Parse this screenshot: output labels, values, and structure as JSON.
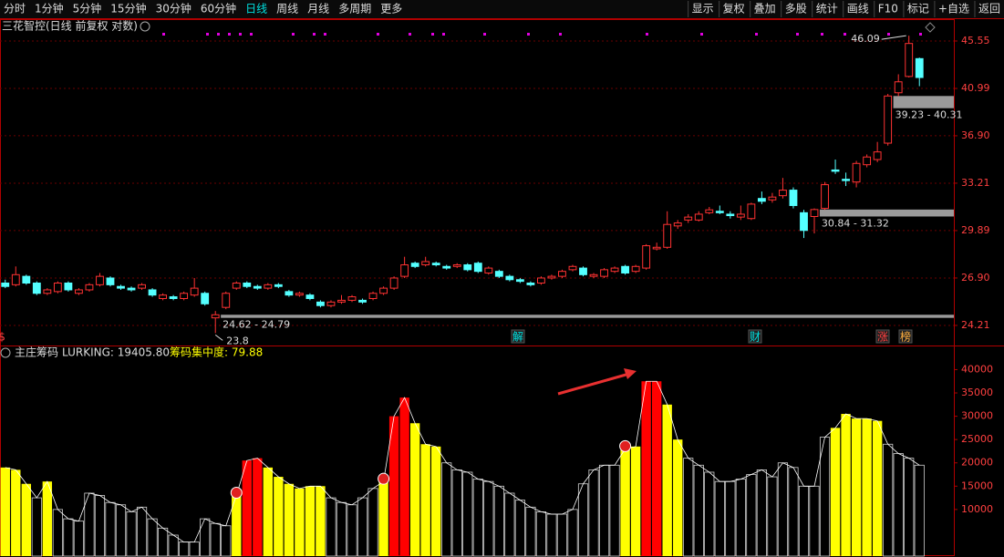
{
  "toolbar": {
    "left": [
      "分时",
      "1分钟",
      "5分钟",
      "15分钟",
      "30分钟",
      "60分钟",
      "日线",
      "周线",
      "月线",
      "多周期",
      "更多"
    ],
    "active": 6,
    "right": [
      "显示",
      "复权",
      "叠加",
      "多股",
      "统计",
      "画线",
      "F10",
      "标记",
      "+自选",
      "返回"
    ]
  },
  "chart_data": [
    {
      "type": "candlestick",
      "title": "三花智控(日线 前复权 对数)",
      "log_scale": true,
      "grid": true,
      "up_color": "#ff3232",
      "down_color": "#54ffff",
      "open": [
        26.6,
        26.5,
        27.0,
        26.6,
        26.0,
        26.1,
        26.6,
        26.0,
        26.2,
        26.5,
        26.9,
        26.4,
        26.3,
        26.3,
        26.2,
        25.7,
        25.8,
        25.7,
        25.9,
        26.0,
        24.62,
        25.2,
        26.3,
        26.6,
        26.4,
        26.3,
        26.5,
        26.1,
        25.9,
        25.9,
        25.5,
        25.3,
        25.5,
        25.6,
        25.6,
        25.7,
        26.0,
        26.3,
        27.0,
        27.8,
        27.7,
        27.8,
        27.6,
        27.6,
        27.7,
        27.8,
        27.2,
        27.3,
        27.0,
        26.8,
        26.6,
        26.6,
        26.9,
        27.0,
        27.4,
        27.5,
        27.0,
        27.0,
        27.3,
        27.6,
        27.3,
        27.5,
        28.7,
        28.8,
        30.2,
        30.6,
        30.6,
        31.1,
        31.2,
        31.0,
        30.8,
        30.7,
        32.1,
        32.0,
        32.3,
        32.7,
        31.1,
        30.84,
        31.4,
        34.2,
        33.5,
        33.3,
        34.6,
        35.0,
        36.3,
        40.6,
        42.1,
        43.8
      ],
      "high": [
        26.8,
        27.6,
        27.1,
        26.7,
        26.3,
        26.7,
        26.7,
        26.3,
        26.6,
        27.2,
        27.0,
        26.5,
        26.4,
        26.6,
        26.3,
        26.0,
        25.9,
        26.1,
        26.9,
        26.1,
        25.0,
        26.1,
        26.7,
        26.7,
        26.5,
        26.6,
        26.6,
        26.2,
        26.1,
        26.0,
        25.6,
        25.6,
        25.9,
        25.9,
        25.7,
        26.1,
        26.4,
        27.0,
        28.2,
        27.9,
        28.2,
        27.9,
        27.7,
        27.8,
        27.8,
        27.9,
        27.6,
        27.4,
        27.1,
        26.9,
        26.7,
        27.0,
        27.1,
        27.4,
        27.7,
        27.6,
        27.2,
        27.5,
        27.6,
        27.7,
        27.7,
        29.0,
        29.1,
        31.2,
        30.6,
        31.0,
        31.2,
        31.5,
        31.6,
        31.2,
        31.6,
        31.8,
        32.6,
        32.5,
        33.6,
        32.9,
        31.3,
        31.4,
        33.3,
        35.0,
        34.0,
        34.9,
        35.4,
        36.4,
        40.5,
        42.3,
        46.09,
        43.9
      ],
      "low": [
        26.3,
        26.4,
        26.5,
        25.9,
        25.9,
        26.0,
        26.1,
        25.9,
        26.1,
        26.4,
        26.4,
        26.2,
        26.1,
        26.2,
        25.8,
        25.6,
        25.6,
        25.6,
        25.8,
        25.3,
        23.8,
        25.1,
        26.2,
        26.3,
        26.2,
        26.2,
        26.3,
        25.8,
        25.8,
        25.6,
        25.2,
        25.2,
        25.4,
        25.5,
        25.4,
        25.6,
        25.9,
        26.2,
        26.9,
        27.5,
        27.6,
        27.6,
        27.4,
        27.5,
        27.3,
        27.2,
        27.1,
        26.9,
        26.7,
        26.6,
        26.4,
        26.5,
        26.8,
        26.9,
        27.3,
        27.0,
        26.9,
        26.9,
        27.2,
        27.1,
        27.2,
        27.4,
        28.6,
        28.7,
        30.0,
        30.4,
        30.5,
        31.0,
        31.0,
        30.7,
        30.6,
        30.6,
        31.7,
        31.8,
        32.1,
        31.4,
        29.4,
        29.7,
        31.3,
        33.9,
        33.0,
        32.9,
        34.4,
        34.8,
        36.1,
        40.3,
        42.0,
        41.2
      ],
      "close": [
        26.4,
        27.1,
        26.6,
        26.0,
        26.2,
        26.6,
        26.2,
        26.2,
        26.5,
        27.0,
        26.5,
        26.3,
        26.2,
        26.5,
        25.9,
        25.9,
        25.7,
        26.0,
        26.3,
        25.4,
        24.79,
        26.0,
        26.6,
        26.4,
        26.3,
        26.5,
        26.4,
        25.9,
        26.0,
        25.7,
        25.3,
        25.5,
        25.6,
        25.8,
        25.5,
        26.0,
        26.3,
        26.9,
        27.7,
        27.6,
        27.9,
        27.7,
        27.5,
        27.7,
        27.4,
        27.3,
        27.5,
        27.0,
        26.8,
        26.7,
        26.5,
        26.9,
        27.0,
        27.3,
        27.6,
        27.1,
        27.1,
        27.4,
        27.5,
        27.2,
        27.6,
        28.9,
        28.8,
        30.3,
        30.4,
        30.8,
        31.0,
        31.3,
        31.1,
        30.9,
        31.0,
        31.7,
        31.9,
        32.2,
        32.7,
        31.6,
        29.9,
        31.32,
        33.1,
        34.1,
        33.4,
        34.7,
        35.2,
        35.6,
        40.31,
        41.6,
        45.3,
        42.0
      ],
      "zones": [
        {
          "label": "39.23 - 40.31",
          "low": 39.23,
          "high": 40.31
        },
        {
          "label": "30.84 - 31.32",
          "low": 30.84,
          "high": 31.32
        },
        {
          "label": "24.62 - 24.79",
          "low": 24.62,
          "high": 24.79
        }
      ],
      "events": [
        "$",
        "解",
        "财",
        "涨",
        "榜"
      ],
      "ylim": [
        23.2,
        47.72
      ],
      "yticks": [
        45.55,
        40.99,
        {
          "value": 36.9,
          "label": "36.90"
        },
        33.21,
        29.89,
        {
          "value": 26.9,
          "label": "26.90"
        },
        24.21
      ]
    },
    {
      "type": "bar",
      "title": "主庄筹码",
      "readouts": [
        "LURKING: 19405.80",
        "筹码集中度: 79.88"
      ],
      "line_color": "#ffffff",
      "values": [
        19000,
        18500,
        15500,
        12500,
        16000,
        10000,
        8000,
        7500,
        13500,
        13000,
        11500,
        11000,
        9500,
        10500,
        8000,
        6000,
        4500,
        3000,
        3000,
        8000,
        7000,
        6500,
        13000,
        20500,
        21000,
        19000,
        17000,
        15500,
        14500,
        15000,
        15000,
        12500,
        11500,
        11000,
        12500,
        14500,
        16000,
        30000,
        34000,
        28500,
        24000,
        23500,
        20000,
        18500,
        18000,
        16500,
        16000,
        15000,
        13500,
        12000,
        10500,
        9500,
        9000,
        9000,
        10000,
        15500,
        18500,
        19500,
        19500,
        23000,
        23500,
        37500,
        37500,
        32500,
        25000,
        21000,
        19500,
        18000,
        16000,
        16000,
        16500,
        17500,
        18500,
        17000,
        20000,
        19000,
        15000,
        15000,
        25500,
        27500,
        30500,
        29500,
        29500,
        29000,
        24000,
        22000,
        21000,
        19500
      ],
      "colors": [
        "#ffff00",
        "#ffff00",
        "#ffff00",
        "#000000",
        "#ffff00",
        "#000000",
        "#000000",
        "#000000",
        "#000000",
        "#000000",
        "#000000",
        "#000000",
        "#000000",
        "#000000",
        "#000000",
        "#000000",
        "#000000",
        "#000000",
        "#000000",
        "#000000",
        "#000000",
        "#000000",
        "#ffff00",
        "#ff0000",
        "#ff0000",
        "#ffff00",
        "#ffff00",
        "#ffff00",
        "#ffff00",
        "#ffff00",
        "#ffff00",
        "#000000",
        "#000000",
        "#000000",
        "#000000",
        "#000000",
        "#ffff00",
        "#ff0000",
        "#ff0000",
        "#ffff00",
        "#ffff00",
        "#ffff00",
        "#000000",
        "#000000",
        "#000000",
        "#000000",
        "#000000",
        "#000000",
        "#000000",
        "#000000",
        "#000000",
        "#000000",
        "#000000",
        "#000000",
        "#000000",
        "#000000",
        "#000000",
        "#000000",
        "#000000",
        "#ffff00",
        "#ffff00",
        "#ff0000",
        "#ff0000",
        "#ffff00",
        "#ffff00",
        "#000000",
        "#000000",
        "#000000",
        "#000000",
        "#000000",
        "#000000",
        "#000000",
        "#000000",
        "#000000",
        "#000000",
        "#000000",
        "#000000",
        "#000000",
        "#000000",
        "#ffff00",
        "#ffff00",
        "#ffff00",
        "#ffff00",
        "#ffff00",
        "#000000",
        "#000000",
        "#000000",
        "#000000"
      ],
      "ylim": [
        0,
        44000
      ],
      "yticks": [
        40000,
        35000,
        30000,
        25000,
        20000,
        15000,
        10000
      ]
    }
  ]
}
